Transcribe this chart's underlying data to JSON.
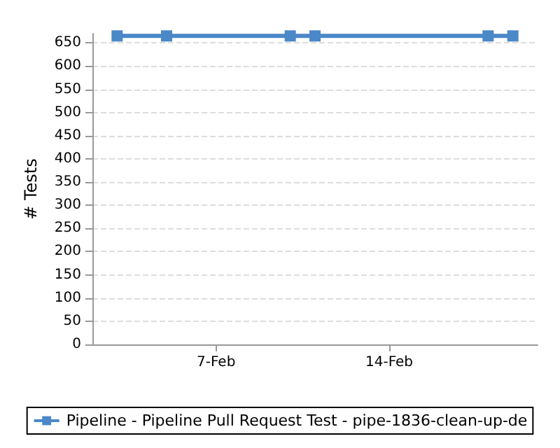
{
  "chart_data": {
    "type": "line",
    "ylabel": "# Tests",
    "x": [
      "--02-03",
      "--02-05",
      "--02-10",
      "--02-11",
      "--02-18",
      "--02-19"
    ],
    "series": [
      {
        "name": "Pipeline - Pipeline Pull Request Test - pipe-1836-clean-up-de",
        "color": "#4a88c8",
        "values": [
          665,
          665,
          665,
          665,
          665,
          665
        ]
      }
    ],
    "xlim": [
      "--02-02",
      "--02-20"
    ],
    "xticks": [
      {
        "value": "--02-07",
        "label": "7-Feb"
      },
      {
        "value": "--02-14",
        "label": "14-Feb"
      }
    ],
    "ylim": [
      0,
      670
    ],
    "yticks": [
      0,
      50,
      100,
      150,
      200,
      250,
      300,
      350,
      400,
      450,
      500,
      550,
      600,
      650
    ],
    "grid": "y",
    "legend": "bottom",
    "marker": "square",
    "line_style": "solid"
  }
}
